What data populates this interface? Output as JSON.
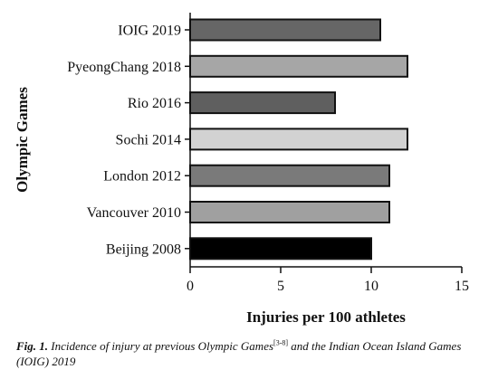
{
  "chart_data": {
    "type": "bar",
    "orientation": "horizontal",
    "categories": [
      "IOIG 2019",
      "PyeongChang 2018",
      "Rio 2016",
      "Sochi 2014",
      "London 2012",
      "Vancouver 2010",
      "Beijing 2008"
    ],
    "values": [
      10.5,
      12.0,
      8.0,
      12.0,
      11.0,
      11.0,
      10.0
    ],
    "bar_colors": [
      "#666666",
      "#a6a6a6",
      "#5f5f5f",
      "#d2d2d2",
      "#7a7a7a",
      "#a0a0a0",
      "#000000"
    ],
    "xlabel": "Injuries per 100 athletes",
    "ylabel": "Olympic Games",
    "xlim": [
      0,
      15
    ],
    "xticks": [
      0,
      5,
      10,
      15
    ],
    "grid": false
  },
  "caption": {
    "prefix": "Fig. 1.",
    "text_before_ref": "Incidence of injury at previous Olympic Games",
    "ref": "[3-8]",
    "text_after_ref": "and the Indian Ocean Island Games (IOIG) 2019"
  }
}
